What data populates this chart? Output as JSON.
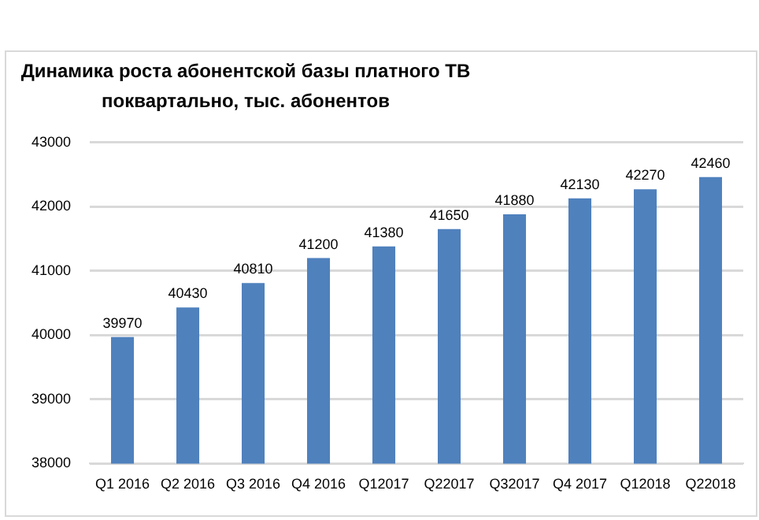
{
  "chart_data": {
    "type": "bar",
    "title": "Динамика роста абонентской базы платного ТВ\nпоквартально, тыс. абонентов",
    "categories": [
      "Q1 2016",
      "Q2 2016",
      "Q3 2016",
      "Q4 2016",
      "Q12017",
      "Q22017",
      "Q32017",
      "Q4 2017",
      "Q12018",
      "Q22018"
    ],
    "values": [
      39970,
      40430,
      40810,
      41200,
      41380,
      41650,
      41880,
      42130,
      42270,
      42460
    ],
    "color": "#4f81bd",
    "ylim": [
      38000,
      43000
    ],
    "yticks": [
      38000,
      39000,
      40000,
      41000,
      42000,
      43000
    ],
    "grid": "y",
    "data_labels": true
  }
}
